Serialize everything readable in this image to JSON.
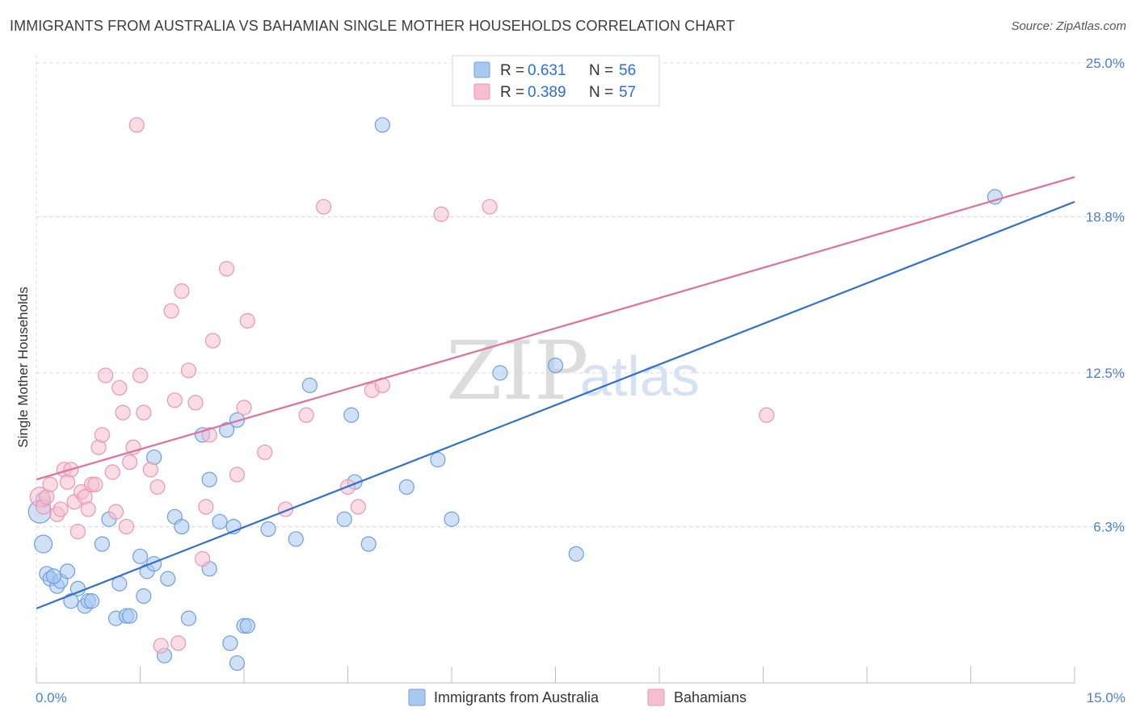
{
  "title": "IMMIGRANTS FROM AUSTRALIA VS BAHAMIAN SINGLE MOTHER HOUSEHOLDS CORRELATION CHART",
  "source": "Source: ZipAtlas.com",
  "watermark": {
    "zip": "ZIP",
    "atlas": "atlas"
  },
  "colors": {
    "blue_fill": "#a9c8ef",
    "blue_stroke": "#6e9fe0",
    "blue_line": "#2f6fd0",
    "pink_fill": "#f6bfd0",
    "pink_stroke": "#ec95b2",
    "pink_line": "#e07099",
    "grid": "#d8d8d8",
    "tick_text": "#4a7fd0"
  },
  "legend": {
    "rows": [
      {
        "r_label": "R =",
        "r_value": "0.631",
        "n_label": "N =",
        "n_value": "56"
      },
      {
        "r_label": "R =",
        "r_value": "0.389",
        "n_label": "N =",
        "n_value": "57"
      }
    ]
  },
  "bottom_legend": [
    "Immigrants from Australia",
    "Bahamians"
  ],
  "chart_data": {
    "type": "scatter",
    "title": "IMMIGRANTS FROM AUSTRALIA VS BAHAMIAN SINGLE MOTHER HOUSEHOLDS CORRELATION CHART",
    "xlabel": "",
    "ylabel": "Single Mother Households",
    "xlim": [
      0,
      15
    ],
    "ylim": [
      0,
      25
    ],
    "x_tick_labels": [
      "0.0%",
      "15.0%"
    ],
    "y_ticks": [
      6.3,
      12.5,
      18.8,
      25.0
    ],
    "y_tick_labels": [
      "6.3%",
      "12.5%",
      "18.8%",
      "25.0%"
    ],
    "grid": true,
    "legend_position": "top-center",
    "series": [
      {
        "name": "Immigrants from Australia",
        "color": "#a9c8ef",
        "trend": [
          [
            0,
            3.0
          ],
          [
            15,
            19.4
          ]
        ],
        "points": [
          [
            0.05,
            6.9,
            14
          ],
          [
            0.1,
            5.6,
            11
          ],
          [
            0.15,
            4.4,
            9
          ],
          [
            0.2,
            4.2,
            9
          ],
          [
            0.3,
            3.9,
            9
          ],
          [
            0.35,
            4.1,
            9
          ],
          [
            0.45,
            4.5,
            9
          ],
          [
            0.5,
            3.3,
            9
          ],
          [
            0.6,
            3.8,
            9
          ],
          [
            0.7,
            3.1,
            9
          ],
          [
            0.75,
            3.3,
            9
          ],
          [
            0.8,
            3.3,
            9
          ],
          [
            0.95,
            5.6,
            9
          ],
          [
            1.05,
            6.6,
            9
          ],
          [
            1.15,
            2.6,
            9
          ],
          [
            1.3,
            2.7,
            9
          ],
          [
            1.35,
            2.7,
            9
          ],
          [
            1.2,
            4.0,
            9
          ],
          [
            1.5,
            5.1,
            9
          ],
          [
            1.55,
            3.5,
            9
          ],
          [
            1.6,
            4.5,
            9
          ],
          [
            1.7,
            4.8,
            9
          ],
          [
            1.7,
            9.1,
            9
          ],
          [
            1.85,
            1.1,
            9
          ],
          [
            1.9,
            4.2,
            9
          ],
          [
            2.0,
            6.7,
            9
          ],
          [
            2.1,
            6.3,
            9
          ],
          [
            2.2,
            2.6,
            9
          ],
          [
            2.4,
            10.0,
            9
          ],
          [
            2.5,
            8.2,
            9
          ],
          [
            2.5,
            4.6,
            9
          ],
          [
            2.65,
            6.5,
            9
          ],
          [
            2.75,
            10.2,
            9
          ],
          [
            2.9,
            10.6,
            9
          ],
          [
            2.8,
            1.6,
            9
          ],
          [
            2.9,
            0.8,
            9
          ],
          [
            2.85,
            6.3,
            9
          ],
          [
            3.0,
            2.3,
            9
          ],
          [
            3.05,
            2.3,
            9
          ],
          [
            3.35,
            6.2,
            9
          ],
          [
            3.75,
            5.8,
            9
          ],
          [
            3.95,
            12.0,
            9
          ],
          [
            4.55,
            10.8,
            9
          ],
          [
            4.45,
            6.6,
            9
          ],
          [
            4.6,
            8.1,
            9
          ],
          [
            4.8,
            5.6,
            9
          ],
          [
            5.0,
            22.5,
            9
          ],
          [
            5.35,
            7.9,
            9
          ],
          [
            5.8,
            9.0,
            9
          ],
          [
            6.0,
            6.6,
            9
          ],
          [
            6.7,
            12.5,
            9
          ],
          [
            7.5,
            12.8,
            9
          ],
          [
            7.8,
            5.2,
            9
          ],
          [
            13.85,
            19.6,
            9
          ],
          [
            0.1,
            7.4,
            9
          ],
          [
            0.25,
            4.3,
            9
          ]
        ]
      },
      {
        "name": "Bahamians",
        "color": "#f6bfd0",
        "trend": [
          [
            0,
            8.2
          ],
          [
            15,
            20.4
          ]
        ],
        "points": [
          [
            0.05,
            7.5,
            12
          ],
          [
            0.1,
            7.1,
            9
          ],
          [
            0.15,
            7.5,
            9
          ],
          [
            0.2,
            8.0,
            9
          ],
          [
            0.3,
            6.8,
            9
          ],
          [
            0.35,
            7.0,
            9
          ],
          [
            0.4,
            8.6,
            9
          ],
          [
            0.45,
            8.1,
            9
          ],
          [
            0.5,
            8.6,
            9
          ],
          [
            0.55,
            7.3,
            9
          ],
          [
            0.6,
            6.1,
            9
          ],
          [
            0.65,
            7.7,
            9
          ],
          [
            0.7,
            7.5,
            9
          ],
          [
            0.75,
            7.0,
            9
          ],
          [
            0.8,
            8.0,
            9
          ],
          [
            0.85,
            8.0,
            9
          ],
          [
            0.9,
            9.5,
            9
          ],
          [
            0.95,
            10.0,
            9
          ],
          [
            1.0,
            12.4,
            9
          ],
          [
            1.1,
            8.5,
            9
          ],
          [
            1.15,
            6.9,
            9
          ],
          [
            1.2,
            11.9,
            9
          ],
          [
            1.25,
            10.9,
            9
          ],
          [
            1.3,
            6.3,
            9
          ],
          [
            1.35,
            8.9,
            9
          ],
          [
            1.4,
            9.5,
            9
          ],
          [
            1.45,
            22.5,
            9
          ],
          [
            1.5,
            12.4,
            9
          ],
          [
            1.55,
            10.9,
            9
          ],
          [
            1.65,
            8.6,
            9
          ],
          [
            1.75,
            7.9,
            9
          ],
          [
            1.8,
            1.5,
            9
          ],
          [
            1.95,
            15.0,
            9
          ],
          [
            2.0,
            11.4,
            9
          ],
          [
            2.05,
            1.6,
            9
          ],
          [
            2.1,
            15.8,
            9
          ],
          [
            2.2,
            12.6,
            9
          ],
          [
            2.3,
            11.3,
            9
          ],
          [
            2.4,
            5.0,
            9
          ],
          [
            2.45,
            7.1,
            9
          ],
          [
            2.5,
            10.0,
            9
          ],
          [
            2.55,
            13.8,
            9
          ],
          [
            2.75,
            16.7,
            9
          ],
          [
            2.9,
            8.4,
            9
          ],
          [
            3.0,
            11.1,
            9
          ],
          [
            3.05,
            14.6,
            9
          ],
          [
            3.3,
            9.3,
            9
          ],
          [
            3.6,
            7.0,
            9
          ],
          [
            3.9,
            10.8,
            9
          ],
          [
            4.15,
            19.2,
            9
          ],
          [
            4.65,
            7.1,
            9
          ],
          [
            4.85,
            11.8,
            9
          ],
          [
            5.0,
            12.0,
            9
          ],
          [
            5.85,
            18.9,
            9
          ],
          [
            6.55,
            19.2,
            9
          ],
          [
            10.55,
            10.8,
            9
          ],
          [
            4.5,
            7.9,
            9
          ]
        ]
      }
    ]
  }
}
